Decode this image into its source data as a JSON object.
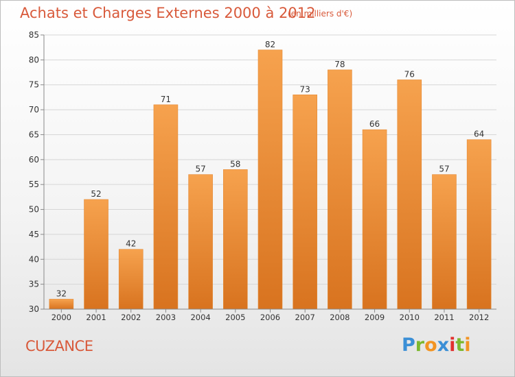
{
  "chart_data": {
    "type": "bar",
    "title": "Achats et Charges Externes 2000 à 2012",
    "subtitle": "(en milliers d'€)",
    "categories": [
      "2000",
      "2001",
      "2002",
      "2003",
      "2004",
      "2005",
      "2006",
      "2007",
      "2008",
      "2009",
      "2010",
      "2011",
      "2012"
    ],
    "values": [
      32,
      52,
      42,
      71,
      57,
      58,
      82,
      73,
      78,
      66,
      76,
      57,
      64
    ],
    "xlabel": "",
    "ylabel": "",
    "ylim": [
      30,
      85
    ],
    "yticks": [
      30,
      35,
      40,
      45,
      50,
      55,
      60,
      65,
      70,
      75,
      80,
      85
    ],
    "grid": "horizontal",
    "legend": "none",
    "bar_color_top": "#f6a24e",
    "bar_color_bottom": "#d8731f"
  },
  "footer": {
    "commune": "CUZANCE",
    "logo_text": "Proxiti",
    "logo_letters": [
      {
        "char": "P",
        "color": "#3b8fd6"
      },
      {
        "char": "r",
        "color": "#7cb82f"
      },
      {
        "char": "o",
        "color": "#f29423"
      },
      {
        "char": "x",
        "color": "#3b8fd6"
      },
      {
        "char": "i",
        "color": "#e2302e"
      },
      {
        "char": "t",
        "color": "#7cb82f"
      },
      {
        "char": "i",
        "color": "#f29423"
      }
    ]
  }
}
